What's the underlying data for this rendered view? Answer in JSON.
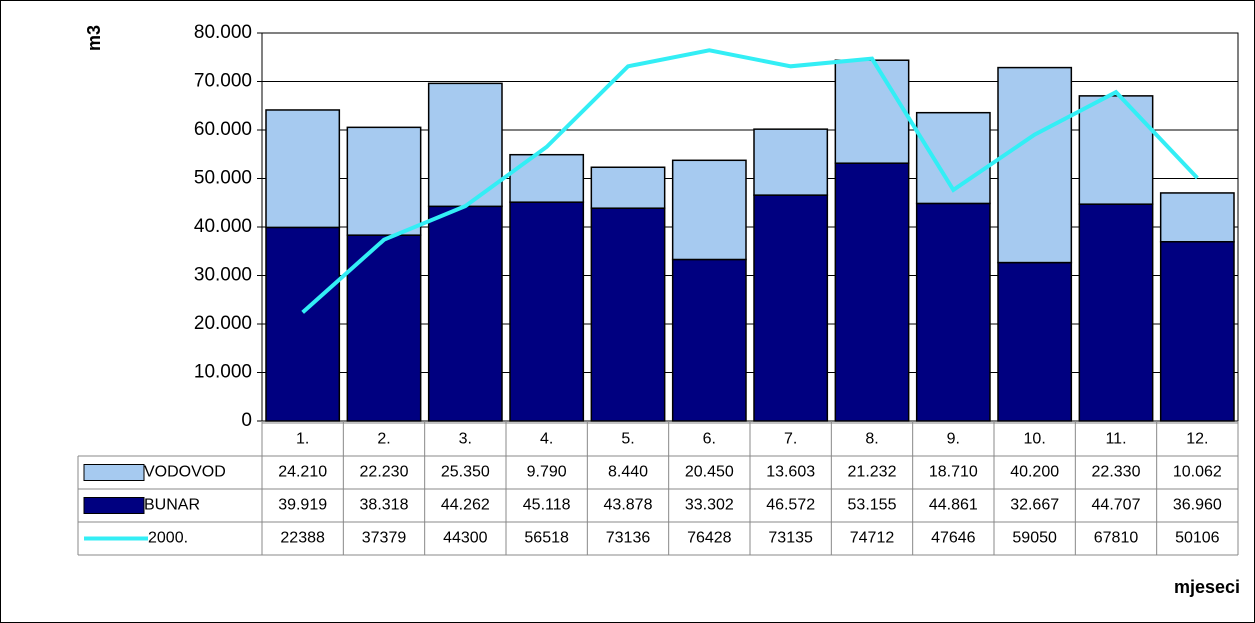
{
  "chart_data": {
    "type": "bar",
    "y_label": "m3",
    "x_label": "mjeseci",
    "categories": [
      "1.",
      "2.",
      "3.",
      "4.",
      "5.",
      "6.",
      "7.",
      "8.",
      "9.",
      "10.",
      "11.",
      "12."
    ],
    "series": [
      {
        "name": "VODOVOD",
        "type": "bar",
        "color": "#a6caf0",
        "values": [
          24210,
          22230,
          25350,
          9790,
          8440,
          20450,
          13603,
          21232,
          18710,
          40200,
          22330,
          10062
        ],
        "value_labels": [
          "24.210",
          "22.230",
          "25.350",
          "9.790",
          "8.440",
          "20.450",
          "13.603",
          "21.232",
          "18.710",
          "40.200",
          "22.330",
          "10.062"
        ]
      },
      {
        "name": "BUNAR",
        "type": "bar",
        "color": "#000080",
        "values": [
          39919,
          38318,
          44262,
          45118,
          43878,
          33302,
          46572,
          53155,
          44861,
          32667,
          44707,
          36960
        ],
        "value_labels": [
          "39.919",
          "38.318",
          "44.262",
          "45.118",
          "43.878",
          "33.302",
          "46.572",
          "53.155",
          "44.861",
          "32.667",
          "44.707",
          "36.960"
        ]
      },
      {
        "name": "2000.",
        "type": "line",
        "color": "#33eef5",
        "values": [
          22388,
          37379,
          44300,
          56518,
          73136,
          76428,
          73135,
          74712,
          47646,
          59050,
          67810,
          50106
        ]
      }
    ],
    "ylim": [
      0,
      80000
    ],
    "yticks": [
      0,
      {
        "value": 10000,
        "label": "10.000"
      },
      {
        "value": 20000,
        "label": "20.000"
      },
      {
        "value": 30000,
        "label": "30.000"
      },
      {
        "value": 40000,
        "label": "40.000"
      },
      {
        "value": 50000,
        "label": "50.000"
      },
      {
        "value": 60000,
        "label": "60.000"
      },
      {
        "value": 70000,
        "label": "70.000"
      },
      {
        "value": 80000,
        "label": "80.000"
      }
    ],
    "grid": true
  }
}
